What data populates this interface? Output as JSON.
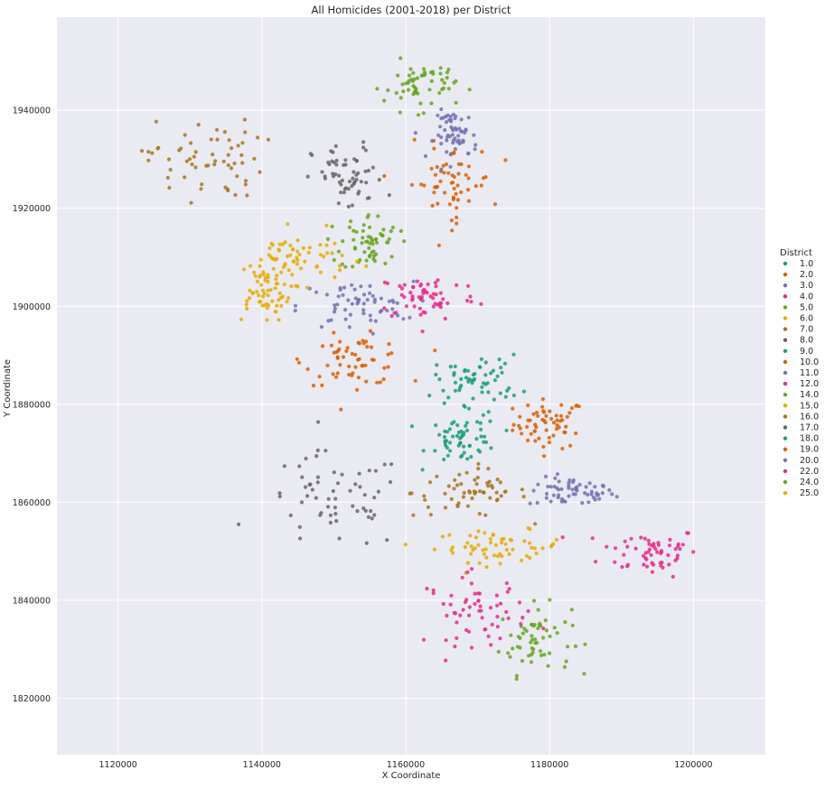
{
  "chart_data": {
    "type": "scatter",
    "title": "All Homicides (2001-2018) per District",
    "xlabel": "X Coordinate",
    "ylabel": "Y Coordinate",
    "xlim": [
      1111500,
      1210000
    ],
    "ylim": [
      1808500,
      1959000
    ],
    "x_ticks": [
      1120000,
      1140000,
      1160000,
      1180000,
      1200000
    ],
    "y_ticks": [
      1820000,
      1840000,
      1860000,
      1880000,
      1900000,
      1920000,
      1940000
    ],
    "grid": true,
    "legend_title": "District",
    "legend_position": "right",
    "series": [
      {
        "name": "1.0",
        "color": "#1b9e77",
        "clusters": []
      },
      {
        "name": "2.0",
        "color": "#d95f02",
        "clusters": [
          [
            1180000,
            1876000,
            2500,
            2500,
            0.46
          ]
        ]
      },
      {
        "name": "3.0",
        "color": "#7570b3",
        "clusters": [
          [
            1183000,
            1862000,
            3000,
            1500,
            0.48
          ]
        ]
      },
      {
        "name": "4.0",
        "color": "#e7298a",
        "clusters": [
          [
            1194000,
            1850000,
            3500,
            2500,
            0.5
          ]
        ]
      },
      {
        "name": "5.0",
        "color": "#66a61e",
        "clusters": [
          [
            1178000,
            1832000,
            2500,
            3500,
            0.5
          ]
        ]
      },
      {
        "name": "6.0",
        "color": "#e6ab02",
        "clusters": [
          [
            1173000,
            1851000,
            4500,
            1600,
            0.58
          ]
        ]
      },
      {
        "name": "7.0",
        "color": "#a6761d",
        "clusters": [
          [
            1169000,
            1862000,
            4000,
            2500,
            0.62
          ]
        ]
      },
      {
        "name": "8.0",
        "color": "#666666",
        "clusters": [
          [
            1150000,
            1860000,
            5000,
            5000,
            0.5
          ]
        ]
      },
      {
        "name": "9.0",
        "color": "#1b9e77",
        "clusters": [
          [
            1168000,
            1873000,
            2500,
            2500,
            0.5
          ]
        ]
      },
      {
        "name": "10.0",
        "color": "#d95f02",
        "clusters": [
          [
            1153000,
            1889000,
            3500,
            2500,
            0.58
          ]
        ]
      },
      {
        "name": "11.0",
        "color": "#7570b3",
        "clusters": [
          [
            1153000,
            1900000,
            4000,
            2500,
            0.62
          ]
        ]
      },
      {
        "name": "12.0",
        "color": "#e7298a",
        "clusters": [
          [
            1163000,
            1902000,
            3500,
            2500,
            0.46
          ]
        ]
      },
      {
        "name": "14.0",
        "color": "#66a61e",
        "clusters": [
          [
            1155000,
            1913000,
            2000,
            3000,
            0.46
          ]
        ]
      },
      {
        "name": "15.0",
        "color": "#e6ab02",
        "clusters": [
          [
            1140000,
            1903000,
            2000,
            3000,
            0.56
          ]
        ]
      },
      {
        "name": "16.0",
        "color": "#a6761d",
        "clusters": [
          [
            1132000,
            1930000,
            4000,
            4000,
            0.36
          ]
        ]
      },
      {
        "name": "17.0",
        "color": "#666666",
        "clusters": [
          [
            1152000,
            1926000,
            2500,
            3500,
            0.44
          ]
        ]
      },
      {
        "name": "18.0",
        "color": "#1b9e77",
        "clusters": [
          [
            1170000,
            1885000,
            3000,
            2500,
            0.4
          ]
        ]
      },
      {
        "name": "19.0",
        "color": "#d95f02",
        "clusters": [
          [
            1166000,
            1925000,
            3000,
            4000,
            0.4
          ]
        ]
      },
      {
        "name": "20.0",
        "color": "#7570b3",
        "clusters": [
          [
            1167000,
            1935000,
            1500,
            2500,
            0.4
          ]
        ]
      },
      {
        "name": "22.0",
        "color": "#e7298a",
        "clusters": [
          [
            1170000,
            1838000,
            3500,
            3500,
            0.5
          ]
        ]
      },
      {
        "name": "24.0",
        "color": "#66a61e",
        "clusters": [
          [
            1162000,
            1945000,
            2500,
            2500,
            0.4
          ]
        ]
      },
      {
        "name": "25.0",
        "color": "#e6ab02",
        "clusters": [
          [
            1145000,
            1910000,
            3500,
            2500,
            0.4
          ]
        ]
      }
    ]
  }
}
